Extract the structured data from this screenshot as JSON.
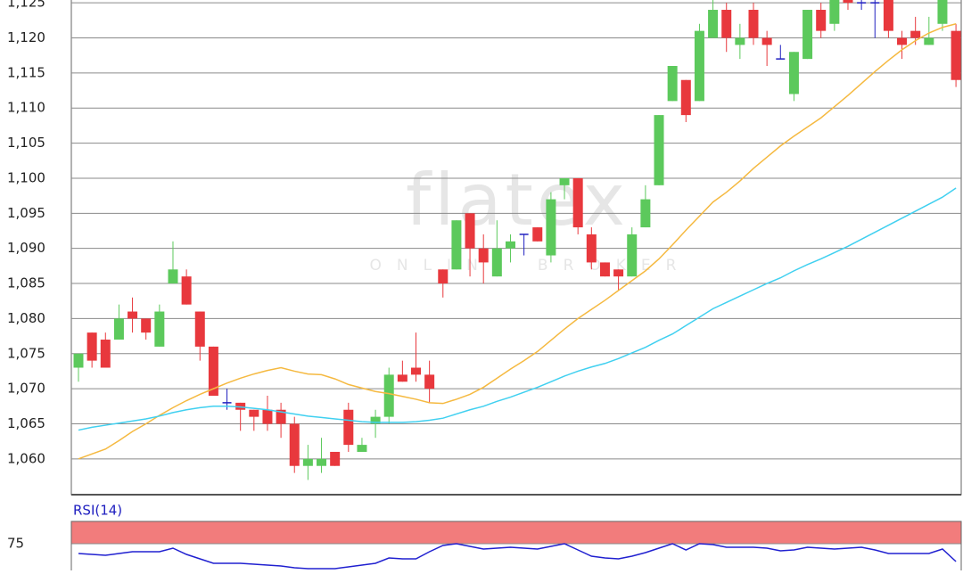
{
  "chart_data": [
    {
      "type": "candlestick",
      "watermark": "flatex",
      "watermark_subtitle": "ONLINE BROKER",
      "open": [
        1073,
        1078,
        1077,
        1077,
        1081,
        1080,
        1076,
        1085,
        1086,
        1081,
        1076,
        1068,
        1068,
        1067,
        1067,
        1067,
        1065,
        1059,
        1059,
        1061,
        1067,
        1061,
        1065,
        1066,
        1072,
        1073,
        1072,
        1087,
        1087,
        1095,
        1090,
        1086,
        1090,
        1092,
        1093,
        1089,
        1099,
        1100,
        1092,
        1088,
        1087,
        1086,
        1093,
        1099,
        1111,
        1114,
        1111,
        1120,
        1124,
        1119,
        1124,
        1120,
        1117,
        1112,
        1117,
        1124,
        1122,
        1126,
        1125,
        1125,
        1126,
        1120,
        1121,
        1119,
        1122,
        1121
      ],
      "high": [
        1075,
        1078,
        1078,
        1082,
        1083,
        1080,
        1082,
        1091,
        1087,
        1081,
        1076,
        1070,
        1068,
        1067,
        1069,
        1068,
        1066,
        1062,
        1063,
        1061,
        1068,
        1063,
        1067,
        1073,
        1074,
        1078,
        1074,
        1087,
        1094,
        1095,
        1092,
        1094,
        1092,
        1092,
        1093,
        1098,
        1100,
        1100,
        1093,
        1088,
        1087,
        1093,
        1099,
        1109,
        1116,
        1114,
        1122,
        1126,
        1125,
        1122,
        1125,
        1121,
        1119,
        1118,
        1124,
        1125,
        1127,
        1127,
        1127,
        1127,
        1127,
        1121,
        1123,
        1123,
        1127,
        1122
      ],
      "low": [
        1071,
        1073,
        1073,
        1077,
        1078,
        1077,
        1076,
        1085,
        1082,
        1074,
        1069,
        1067,
        1064,
        1064,
        1064,
        1063,
        1058,
        1057,
        1058,
        1059,
        1061,
        1061,
        1063,
        1065,
        1071,
        1071,
        1068,
        1083,
        1087,
        1086,
        1085,
        1086,
        1088,
        1089,
        1091,
        1088,
        1097,
        1092,
        1087,
        1086,
        1084,
        1086,
        1093,
        1099,
        1111,
        1108,
        1111,
        1120,
        1118,
        1117,
        1119,
        1116,
        1117,
        1111,
        1117,
        1120,
        1121,
        1124,
        1124,
        1120,
        1120,
        1117,
        1119,
        1119,
        1121,
        1113
      ],
      "close": [
        1075,
        1074,
        1073,
        1080,
        1080,
        1078,
        1081,
        1087,
        1082,
        1076,
        1069,
        1068,
        1067,
        1066,
        1065,
        1065,
        1059,
        1060,
        1060,
        1059,
        1062,
        1062,
        1066,
        1072,
        1071,
        1072,
        1070,
        1085,
        1094,
        1090,
        1088,
        1090,
        1091,
        1092,
        1091,
        1097,
        1100,
        1093,
        1088,
        1086,
        1086,
        1092,
        1097,
        1109,
        1116,
        1109,
        1121,
        1124,
        1120,
        1120,
        1120,
        1119,
        1117,
        1118,
        1124,
        1121,
        1126,
        1125,
        1125,
        1125,
        1121,
        1119,
        1120,
        1120,
        1126,
        1114
      ],
      "up_color": "#5cc95c",
      "down_color": "#e8383d",
      "doji_color": "#2020c0",
      "lines": [
        {
          "color": "#f5b940",
          "values": [
            1060.0,
            1060.7,
            1061.4,
            1062.6,
            1063.9,
            1065.0,
            1066.2,
            1067.3,
            1068.3,
            1069.2,
            1070.0,
            1070.8,
            1071.5,
            1072.1,
            1072.6,
            1073.0,
            1072.5,
            1072.1,
            1072.0,
            1071.4,
            1070.6,
            1070.1,
            1069.6,
            1069.3,
            1068.9,
            1068.5,
            1068.0,
            1067.9,
            1068.5,
            1069.2,
            1070.2,
            1071.5,
            1072.8,
            1074.0,
            1075.3,
            1076.9,
            1078.5,
            1080.0,
            1081.3,
            1082.6,
            1084.0,
            1085.4,
            1086.8,
            1088.5,
            1090.5,
            1092.6,
            1094.6,
            1096.6,
            1098.0,
            1099.6,
            1101.4,
            1103.0,
            1104.6,
            1106.0,
            1107.3,
            1108.6,
            1110.2,
            1111.8,
            1113.5,
            1115.2,
            1116.8,
            1118.3,
            1119.6,
            1120.7,
            1121.5,
            1122.0
          ]
        },
        {
          "color": "#40d0f0",
          "values": [
            1064.1,
            1064.5,
            1064.8,
            1065.1,
            1065.4,
            1065.7,
            1066.1,
            1066.6,
            1067.0,
            1067.3,
            1067.5,
            1067.5,
            1067.4,
            1067.2,
            1067.0,
            1066.7,
            1066.4,
            1066.1,
            1065.9,
            1065.7,
            1065.5,
            1065.3,
            1065.2,
            1065.2,
            1065.2,
            1065.3,
            1065.5,
            1065.8,
            1066.4,
            1067.0,
            1067.5,
            1068.2,
            1068.8,
            1069.5,
            1070.2,
            1071.0,
            1071.8,
            1072.5,
            1073.1,
            1073.6,
            1074.3,
            1075.1,
            1075.9,
            1076.9,
            1077.8,
            1079.0,
            1080.2,
            1081.4,
            1082.3,
            1083.2,
            1084.1,
            1085.0,
            1085.8,
            1086.8,
            1087.7,
            1088.5,
            1089.4,
            1090.3,
            1091.3,
            1092.3,
            1093.3,
            1094.3,
            1095.3,
            1096.3,
            1097.3,
            1098.6
          ]
        }
      ],
      "ylim": [
        1054.9,
        1125.4
      ],
      "yticks": [
        {
          "value": 1060,
          "label": "1,060"
        },
        {
          "value": 1065,
          "label": "1,065"
        },
        {
          "value": 1070,
          "label": "1,070"
        },
        {
          "value": 1075,
          "label": "1,075"
        },
        {
          "value": 1080,
          "label": "1,080"
        },
        {
          "value": 1085,
          "label": "1,085"
        },
        {
          "value": 1090,
          "label": "1,090"
        },
        {
          "value": 1095,
          "label": "1,095"
        },
        {
          "value": 1100,
          "label": "1,100"
        },
        {
          "value": 1105,
          "label": "1,105"
        },
        {
          "value": 1110,
          "label": "1,110"
        },
        {
          "value": 1115,
          "label": "1,115"
        },
        {
          "value": 1120,
          "label": "1,120"
        },
        {
          "value": 1125,
          "label": "1,125"
        }
      ],
      "grid": true
    },
    {
      "type": "line",
      "title": "RSI(14)",
      "color": "#2020d0",
      "band": [
        75,
        100
      ],
      "band_color": "#f27c7c",
      "values": [
        64,
        63,
        62,
        64,
        66,
        66,
        66,
        70,
        63,
        58,
        53,
        53,
        53,
        52,
        51,
        50,
        48,
        47,
        47,
        47,
        49,
        51,
        53,
        59,
        58,
        58,
        66,
        73,
        75,
        72,
        69,
        70,
        71,
        70,
        69,
        72,
        75,
        68,
        61,
        59,
        58,
        61,
        65,
        70,
        75,
        68,
        75,
        74,
        71,
        71,
        71,
        70,
        67,
        68,
        71,
        70,
        69,
        70,
        71,
        68,
        64,
        64,
        64,
        64,
        69,
        55
      ],
      "ylim": [
        45,
        100
      ],
      "yticks": [
        75
      ],
      "grid": true
    }
  ]
}
